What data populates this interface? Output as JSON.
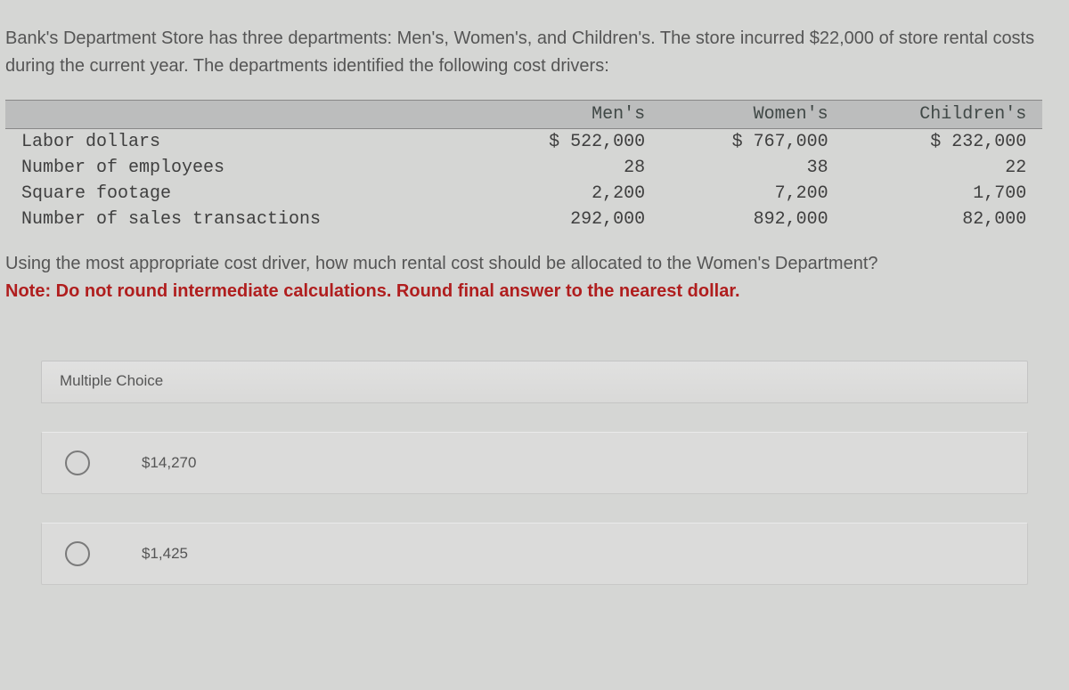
{
  "question": {
    "intro": "Bank's Department Store has three departments: Men's, Women's, and Children's. The store incurred $22,000 of store rental costs during the current year. The departments identified the following cost drivers:",
    "followup": "Using the most appropriate cost driver, how much rental cost should be allocated to the Women's Department?",
    "note": "Note: Do not round intermediate calculations. Round final answer to the nearest dollar."
  },
  "table": {
    "headers": {
      "col0": "",
      "col1": "Men's",
      "col2": "Women's",
      "col3": "Children's"
    },
    "rows": {
      "r0": {
        "label": "Labor dollars",
        "c1": "$ 522,000",
        "c2": "$ 767,000",
        "c3": "$ 232,000"
      },
      "r1": {
        "label": "Number of employees",
        "c1": "28",
        "c2": "38",
        "c3": "22"
      },
      "r2": {
        "label": "Square footage",
        "c1": "2,200",
        "c2": "7,200",
        "c3": "1,700"
      },
      "r3": {
        "label": "Number of sales transactions",
        "c1": "292,000",
        "c2": "892,000",
        "c3": "82,000"
      }
    }
  },
  "mc": {
    "title": "Multiple Choice",
    "options": {
      "o0": "$14,270",
      "o1": "$1,425"
    }
  },
  "style": {
    "background_color": "#d5d6d4",
    "table_header_bg": "#bcbdbd",
    "note_color": "#b01e1e",
    "text_color": "#555555",
    "mono_color": "#3f3f3f"
  }
}
